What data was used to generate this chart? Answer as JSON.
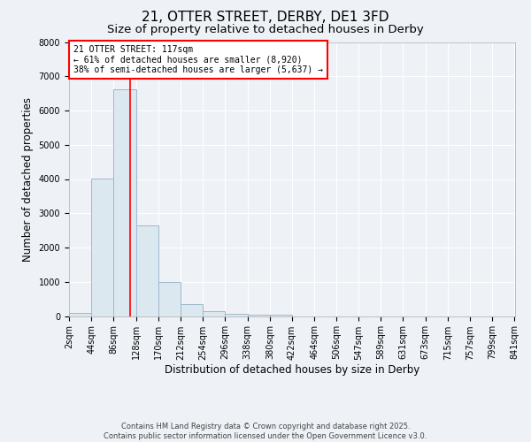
{
  "title": "21, OTTER STREET, DERBY, DE1 3FD",
  "subtitle": "Size of property relative to detached houses in Derby",
  "xlabel": "Distribution of detached houses by size in Derby",
  "ylabel": "Number of detached properties",
  "bar_color": "#dce8f0",
  "bar_edge_color": "#a0b8cc",
  "annotation_box_text": "21 OTTER STREET: 117sqm\n← 61% of detached houses are smaller (8,920)\n38% of semi-detached houses are larger (5,637) →",
  "red_line_x": 117,
  "footer_line1": "Contains HM Land Registry data © Crown copyright and database right 2025.",
  "footer_line2": "Contains public sector information licensed under the Open Government Licence v3.0.",
  "bin_edges": [
    2,
    44,
    86,
    128,
    170,
    212,
    254,
    296,
    338,
    380,
    422,
    464,
    506,
    547,
    589,
    631,
    673,
    715,
    757,
    799,
    841
  ],
  "bar_heights": [
    100,
    4020,
    6620,
    2650,
    1000,
    350,
    150,
    75,
    50,
    50,
    0,
    0,
    0,
    0,
    0,
    0,
    0,
    0,
    0,
    0
  ],
  "ylim": [
    0,
    8000
  ],
  "yticks": [
    0,
    1000,
    2000,
    3000,
    4000,
    5000,
    6000,
    7000,
    8000
  ],
  "background_color": "#eef2f6",
  "grid_color": "#ffffff",
  "title_fontsize": 11,
  "subtitle_fontsize": 9.5,
  "tick_fontsize": 7,
  "label_fontsize": 8.5,
  "footer_fontsize": 6,
  "ann_fontsize": 7
}
